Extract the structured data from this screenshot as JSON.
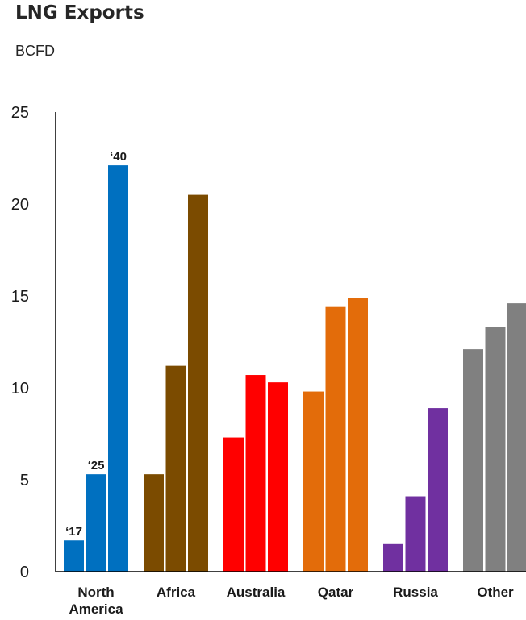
{
  "chart_data": {
    "type": "bar",
    "title": "LNG Exports",
    "subtitle": "BCFD",
    "ylim": [
      0,
      25
    ],
    "yticks": [
      0,
      5,
      10,
      15,
      20,
      25
    ],
    "ytick_labels": [
      "0",
      "5",
      "10",
      "15",
      "20",
      "25"
    ],
    "categories": [
      {
        "lines": [
          "North",
          "America"
        ],
        "color": "#0070c0"
      },
      {
        "lines": [
          "Africa"
        ],
        "color": "#7b4b00"
      },
      {
        "lines": [
          "Australia"
        ],
        "color": "#ff0000"
      },
      {
        "lines": [
          "Qatar"
        ],
        "color": "#e36c0a"
      },
      {
        "lines": [
          "Russia"
        ],
        "color": "#7030a0"
      },
      {
        "lines": [
          "Other"
        ],
        "color": "#808080"
      }
    ],
    "series": [
      {
        "name": "‘17",
        "values": [
          1.7,
          5.3,
          7.3,
          9.8,
          1.5,
          12.1
        ]
      },
      {
        "name": "‘25",
        "values": [
          5.3,
          11.2,
          10.7,
          14.4,
          4.1,
          13.3
        ]
      },
      {
        "name": "‘40",
        "values": [
          22.1,
          20.5,
          10.3,
          14.9,
          8.9,
          14.6
        ]
      }
    ],
    "series_labels_on_category": 0,
    "grid": false,
    "legend": "none"
  }
}
